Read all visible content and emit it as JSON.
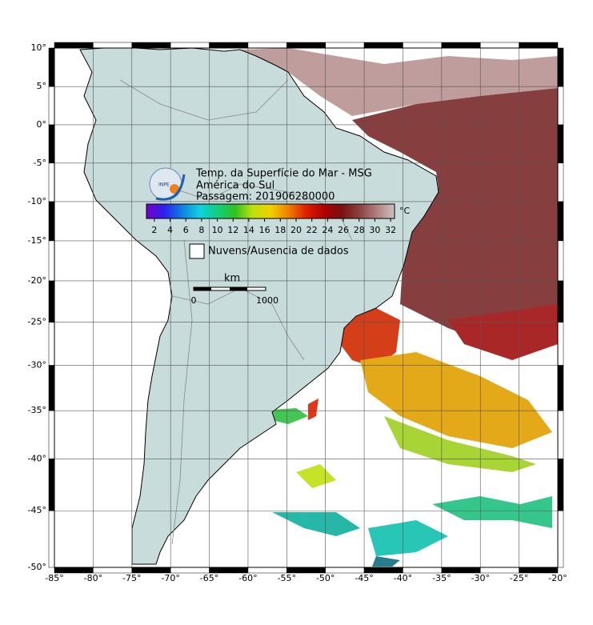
{
  "map": {
    "xlim": [
      -85,
      -20
    ],
    "ylim": [
      -50,
      10
    ],
    "grid": true,
    "xticks": [
      {
        "value": -85,
        "label": "-85°"
      },
      {
        "value": -80,
        "label": "-80°"
      },
      {
        "value": -75,
        "label": "-75°"
      },
      {
        "value": -70,
        "label": "-70°"
      },
      {
        "value": -65,
        "label": "-65°"
      },
      {
        "value": -60,
        "label": "-60°"
      },
      {
        "value": -55,
        "label": "-55°"
      },
      {
        "value": -50,
        "label": "-50°"
      },
      {
        "value": -45,
        "label": "-45°"
      },
      {
        "value": -40,
        "label": "-40°"
      },
      {
        "value": -35,
        "label": "-35°"
      },
      {
        "value": -30,
        "label": "-30°"
      },
      {
        "value": -25,
        "label": "-25°"
      },
      {
        "value": -20,
        "label": "-20°"
      }
    ],
    "yticks": [
      {
        "value": 10,
        "label": "10°"
      },
      {
        "value": 5,
        "label": "5°"
      },
      {
        "value": 0,
        "label": "0°"
      },
      {
        "value": -5,
        "label": "-5°"
      },
      {
        "value": -10,
        "label": "-10°"
      },
      {
        "value": -15,
        "label": "-15°"
      },
      {
        "value": -20,
        "label": "-20°"
      },
      {
        "value": -25,
        "label": "-25°"
      },
      {
        "value": -30,
        "label": "-30°"
      },
      {
        "value": -35,
        "label": "-35°"
      },
      {
        "value": -40,
        "label": "-40°"
      },
      {
        "value": -45,
        "label": "-45°"
      },
      {
        "value": -50,
        "label": "-50°"
      }
    ]
  },
  "logo": "INPE",
  "legend": {
    "title_lines": [
      "Temp. da Superfície do Mar - MSG",
      "América do Sul",
      "Passagem: 201906280000"
    ],
    "colorbar": {
      "lim": [
        1,
        32.5
      ],
      "ticks": [
        2,
        4,
        6,
        8,
        10,
        12,
        14,
        16,
        18,
        20,
        22,
        24,
        26,
        28,
        30,
        32
      ],
      "unit": "°C",
      "colors": [
        "#7a00c8",
        "#2a20f0",
        "#1080e0",
        "#10d0e0",
        "#10d080",
        "#30c020",
        "#c0e010",
        "#f0d000",
        "#f08000",
        "#e02000",
        "#b00000",
        "#7a1010",
        "#8a4040",
        "#b08080",
        "#d0c0c0"
      ]
    },
    "no_data_label": "Nuvens/Ausencia de dados",
    "scale": {
      "unit": "km",
      "start": 0,
      "end": 1000
    }
  }
}
